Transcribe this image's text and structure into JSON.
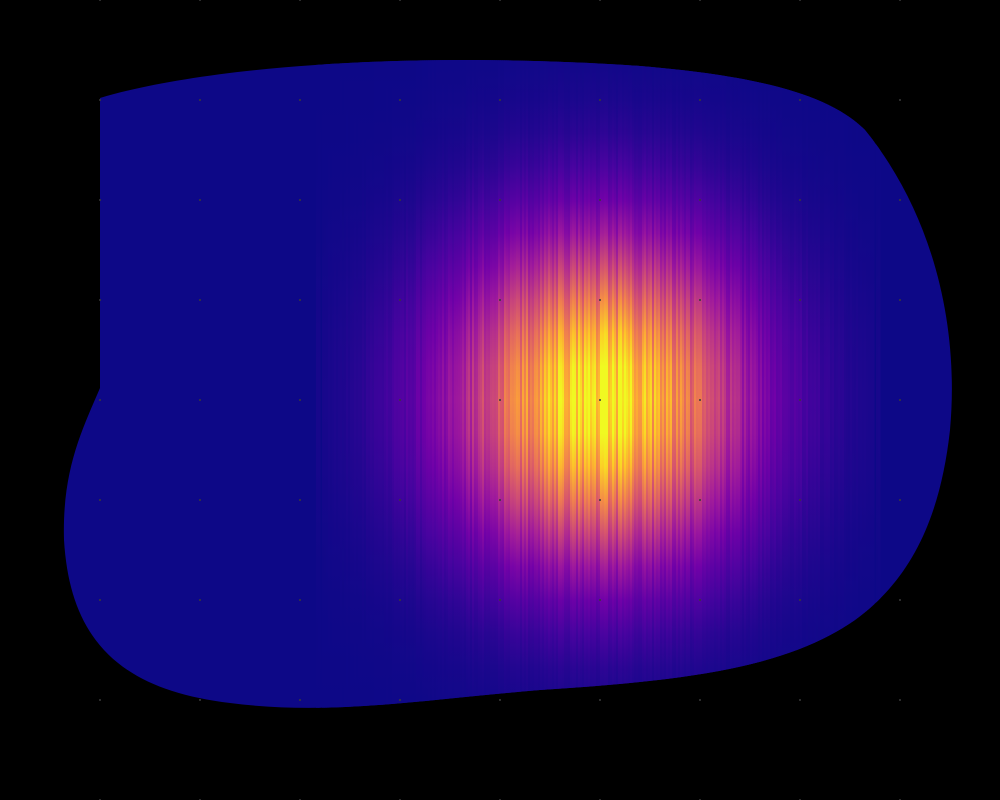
{
  "chart_data": {
    "type": "heatmap",
    "title": "",
    "xlabel": "",
    "ylabel": "",
    "colormap": "plasma",
    "colormap_stops": [
      "#0d0887",
      "#46039f",
      "#7201a8",
      "#9c179e",
      "#bd3786",
      "#d8576b",
      "#ed7953",
      "#fb9f3a",
      "#fdca26",
      "#f0f921"
    ],
    "background_color": "#000000",
    "grid": false,
    "legend": "none",
    "peak": {
      "x": 0.6,
      "y": 0.5,
      "value": 1.0
    },
    "spread": {
      "sx": 0.1,
      "sy": 0.14
    },
    "base_value": 0.0,
    "vertical_streaks": true,
    "grid_dots": {
      "visible": true,
      "color": "#3a3a3a"
    }
  }
}
